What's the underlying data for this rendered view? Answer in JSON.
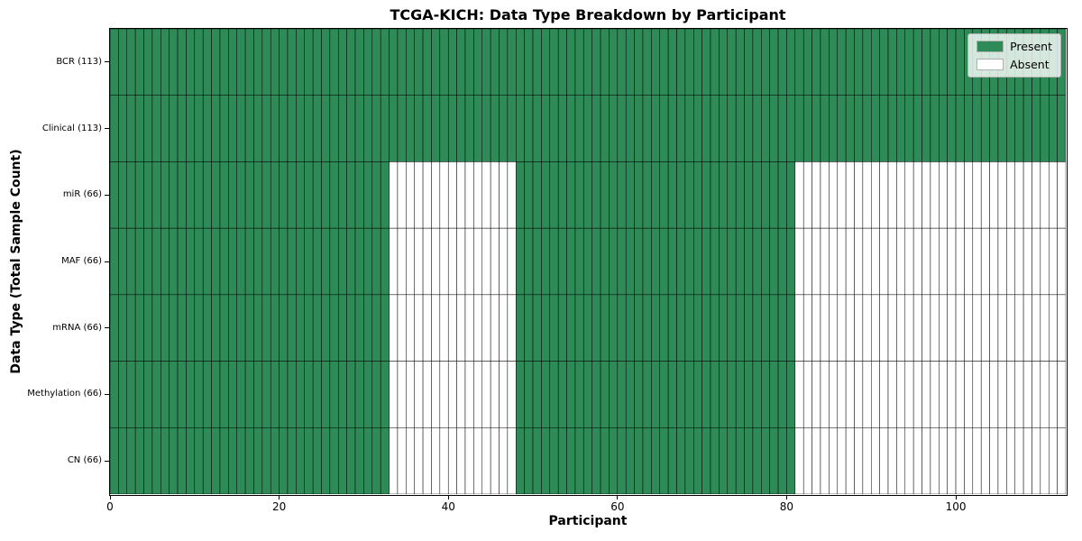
{
  "chart_data": {
    "type": "heatmap",
    "title": "TCGA-KICH: Data Type Breakdown by Participant",
    "xlabel": "Participant",
    "ylabel": "Data Type (Total Sample Count)",
    "x_range": [
      0,
      113
    ],
    "x_ticks": [
      0,
      20,
      40,
      60,
      80,
      100
    ],
    "n_participants": 113,
    "grid": "per-cell black borders, linewidth ~0.5",
    "legend_position": "upper right",
    "rows": [
      {
        "label": "BCR (113)",
        "total_samples": 113,
        "present_ranges": [
          [
            0,
            113
          ]
        ]
      },
      {
        "label": "Clinical (113)",
        "total_samples": 113,
        "present_ranges": [
          [
            0,
            113
          ]
        ]
      },
      {
        "label": "miR (66)",
        "total_samples": 66,
        "present_ranges": [
          [
            0,
            33
          ],
          [
            48,
            81
          ]
        ]
      },
      {
        "label": "MAF (66)",
        "total_samples": 66,
        "present_ranges": [
          [
            0,
            33
          ],
          [
            48,
            81
          ]
        ]
      },
      {
        "label": "mRNA (66)",
        "total_samples": 66,
        "present_ranges": [
          [
            0,
            33
          ],
          [
            48,
            81
          ]
        ]
      },
      {
        "label": "Methylation (66)",
        "total_samples": 66,
        "present_ranges": [
          [
            0,
            33
          ],
          [
            48,
            81
          ]
        ]
      },
      {
        "label": "CN (66)",
        "total_samples": 66,
        "present_ranges": [
          [
            0,
            33
          ],
          [
            48,
            81
          ]
        ]
      }
    ],
    "legend": [
      {
        "label": "Present",
        "color": "#2e8b57"
      },
      {
        "label": "Absent",
        "color": "#ffffff"
      }
    ],
    "colors": {
      "present": "#2e8b57",
      "absent": "#ffffff",
      "grid": "#000000",
      "frame": "#000000",
      "background": "#ffffff"
    }
  }
}
